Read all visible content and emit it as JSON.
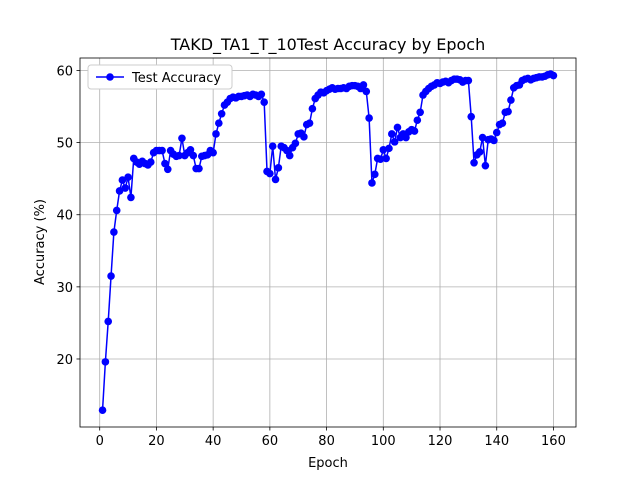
{
  "chart_data": {
    "type": "line",
    "title": "TAKD_TA1_T_10Test Accuracy by Epoch",
    "xlabel": "Epoch",
    "ylabel": "Accuracy (%)",
    "x": [
      1,
      2,
      3,
      4,
      5,
      6,
      7,
      8,
      9,
      10,
      11,
      12,
      13,
      14,
      15,
      16,
      17,
      18,
      19,
      20,
      21,
      22,
      23,
      24,
      25,
      26,
      27,
      28,
      29,
      30,
      31,
      32,
      33,
      34,
      35,
      36,
      37,
      38,
      39,
      40,
      41,
      42,
      43,
      44,
      45,
      46,
      47,
      48,
      49,
      50,
      51,
      52,
      53,
      54,
      55,
      56,
      57,
      58,
      59,
      60,
      61,
      62,
      63,
      64,
      65,
      66,
      67,
      68,
      69,
      70,
      71,
      72,
      73,
      74,
      75,
      76,
      77,
      78,
      79,
      80,
      81,
      82,
      83,
      84,
      85,
      86,
      87,
      88,
      89,
      90,
      91,
      92,
      93,
      94,
      95,
      96,
      97,
      98,
      99,
      100,
      101,
      102,
      103,
      104,
      105,
      106,
      107,
      108,
      109,
      110,
      111,
      112,
      113,
      114,
      115,
      116,
      117,
      118,
      119,
      120,
      121,
      122,
      123,
      124,
      125,
      126,
      127,
      128,
      129,
      130,
      131,
      132,
      133,
      134,
      135,
      136,
      137,
      138,
      139,
      140,
      141,
      142,
      143,
      144,
      145,
      146,
      147,
      148,
      149,
      150,
      151,
      152,
      153,
      154,
      155,
      156,
      157,
      158,
      159,
      160
    ],
    "series": [
      {
        "name": "Test Accuracy",
        "color": "#0000ff",
        "values": [
          12.9,
          19.6,
          25.2,
          31.5,
          37.6,
          40.6,
          43.3,
          44.8,
          43.7,
          45.2,
          42.4,
          47.8,
          47.3,
          47.0,
          47.4,
          47.1,
          46.9,
          47.3,
          48.6,
          48.9,
          48.9,
          48.9,
          47.1,
          46.3,
          48.9,
          48.4,
          48.1,
          48.2,
          50.6,
          48.2,
          48.6,
          49.0,
          48.2,
          46.4,
          46.4,
          48.1,
          48.2,
          48.3,
          48.9,
          48.6,
          51.2,
          52.7,
          54.0,
          55.2,
          55.6,
          56.1,
          56.3,
          56.2,
          56.4,
          56.4,
          56.5,
          56.6,
          56.4,
          56.7,
          56.6,
          56.4,
          56.7,
          55.6,
          46.0,
          45.7,
          49.5,
          44.9,
          46.5,
          49.5,
          49.3,
          48.9,
          48.2,
          49.3,
          49.9,
          51.2,
          51.3,
          50.8,
          52.5,
          52.7,
          54.7,
          56.1,
          56.6,
          57.0,
          56.9,
          57.2,
          57.4,
          57.6,
          57.4,
          57.5,
          57.5,
          57.6,
          57.5,
          57.8,
          57.9,
          57.9,
          57.8,
          57.5,
          58.0,
          57.1,
          53.4,
          44.4,
          45.6,
          47.8,
          47.7,
          49.0,
          47.8,
          49.2,
          51.2,
          50.1,
          52.1,
          50.7,
          51.2,
          50.7,
          51.5,
          51.8,
          51.6,
          53.1,
          54.2,
          56.6,
          57.1,
          57.5,
          57.8,
          58.0,
          58.3,
          58.2,
          58.4,
          58.5,
          58.3,
          58.6,
          58.8,
          58.8,
          58.7,
          58.4,
          58.6,
          58.6,
          53.6,
          47.2,
          48.3,
          48.7,
          50.7,
          46.8,
          50.4,
          50.5,
          50.3,
          51.4,
          52.5,
          52.7,
          54.2,
          54.3,
          55.9,
          57.6,
          57.9,
          58.0,
          58.6,
          58.8,
          58.9,
          58.7,
          58.9,
          59.0,
          59.1,
          59.1,
          59.2,
          59.4,
          59.5,
          59.3
        ]
      }
    ],
    "xlim": [
      -6.95,
      167.95
    ],
    "ylim": [
      10.57,
      61.73
    ],
    "xticks": [
      0,
      20,
      40,
      60,
      80,
      100,
      120,
      140,
      160
    ],
    "yticks": [
      20,
      30,
      40,
      50,
      60
    ],
    "grid": true,
    "legend": "upper-left"
  }
}
